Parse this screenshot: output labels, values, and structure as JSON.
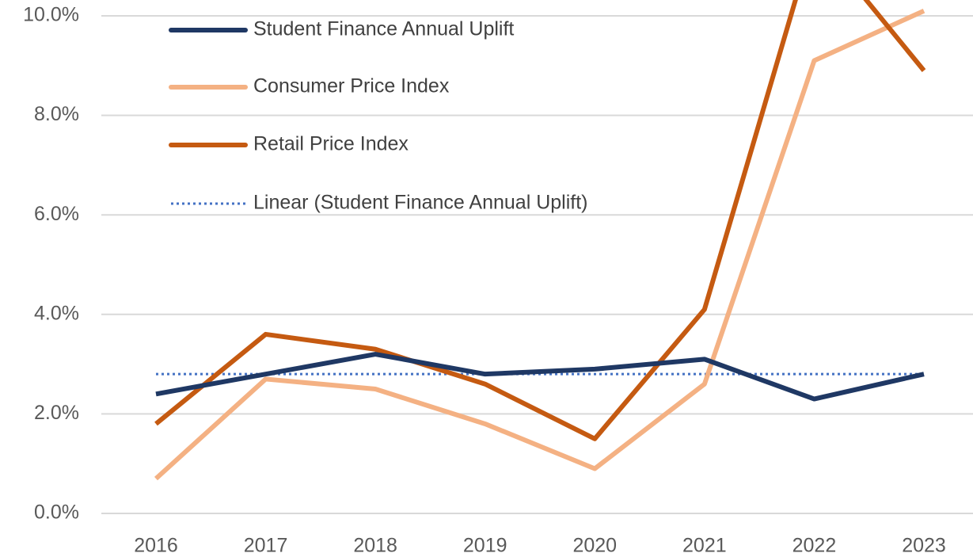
{
  "chart_data": {
    "type": "line",
    "categories": [
      "2016",
      "2017",
      "2018",
      "2019",
      "2020",
      "2021",
      "2022",
      "2023"
    ],
    "series": [
      {
        "name": "Student Finance Annual Uplift",
        "color": "#1f3864",
        "values": [
          2.4,
          2.8,
          3.2,
          2.8,
          2.9,
          3.1,
          2.3,
          2.8
        ]
      },
      {
        "name": "Consumer Price Index",
        "color": "#f4b183",
        "values": [
          0.7,
          2.7,
          2.5,
          1.8,
          0.9,
          2.6,
          9.1,
          10.1
        ]
      },
      {
        "name": "Retail Price Index",
        "color": "#c55a11",
        "values": [
          1.8,
          3.6,
          3.3,
          2.6,
          1.5,
          4.1,
          11.6,
          8.9
        ]
      },
      {
        "name": "Linear (Student Finance Annual Uplift)",
        "color": "#4472c4",
        "style": "dotted",
        "values": [
          2.8,
          2.8,
          2.8,
          2.8,
          2.8,
          2.8,
          2.8,
          2.8
        ]
      }
    ],
    "ylim": [
      0,
      10
    ],
    "yticks": [
      {
        "value": 0,
        "label": "0.0%"
      },
      {
        "value": 2,
        "label": "2.0%"
      },
      {
        "value": 4,
        "label": "4.0%"
      },
      {
        "value": 6,
        "label": "6.0%"
      },
      {
        "value": 8,
        "label": "8.0%"
      },
      {
        "value": 10,
        "label": "10.0%"
      }
    ],
    "grid": true,
    "legend": "top-left"
  }
}
